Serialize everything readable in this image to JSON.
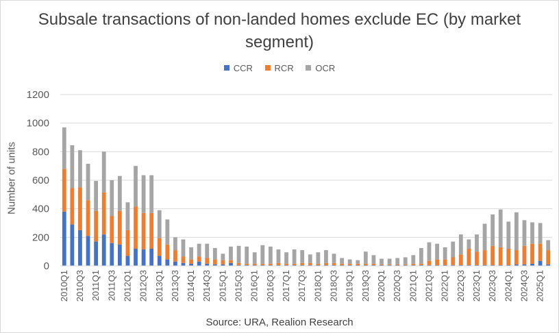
{
  "chart_data": {
    "type": "bar",
    "stacked": true,
    "title": "Subsale transactions of non-landed homes exclude EC (by market segment)",
    "ylabel": "Number of units",
    "source": "Source: URA, Realion Research",
    "ylim": [
      0,
      1200
    ],
    "yticks": [
      "0",
      "200",
      "400",
      "600",
      "800",
      "1000",
      "1200"
    ],
    "legend_position": "top",
    "grid": "horizontal",
    "categories": [
      "2010Q1",
      "2010Q2",
      "2010Q3",
      "2010Q4",
      "2011Q1",
      "2011Q2",
      "2011Q3",
      "2011Q4",
      "2012Q1",
      "2012Q2",
      "2012Q3",
      "2012Q4",
      "2013Q1",
      "2013Q2",
      "2013Q3",
      "2013Q4",
      "2014Q1",
      "2014Q2",
      "2014Q3",
      "2014Q4",
      "2015Q1",
      "2015Q2",
      "2015Q3",
      "2015Q4",
      "2016Q1",
      "2016Q2",
      "2016Q3",
      "2016Q4",
      "2017Q1",
      "2017Q2",
      "2017Q3",
      "2017Q4",
      "2018Q1",
      "2018Q2",
      "2018Q3",
      "2018Q4",
      "2019Q1",
      "2019Q2",
      "2019Q3",
      "2019Q4",
      "2020Q1",
      "2020Q2",
      "2020Q3",
      "2020Q4",
      "2021Q1",
      "2021Q2",
      "2021Q3",
      "2021Q4",
      "2022Q1",
      "2022Q2",
      "2022Q3",
      "2022Q4",
      "2023Q1",
      "2023Q2",
      "2023Q3",
      "2023Q4",
      "2024Q1",
      "2024Q2",
      "2024Q3",
      "2024Q4",
      "2025Q1",
      "2025Q2"
    ],
    "series": [
      {
        "name": "CCR",
        "color": "#4472c4",
        "values": [
          380,
          290,
          250,
          210,
          170,
          220,
          160,
          150,
          70,
          120,
          115,
          120,
          70,
          45,
          30,
          20,
          15,
          30,
          15,
          10,
          10,
          20,
          5,
          5,
          5,
          5,
          5,
          5,
          5,
          5,
          5,
          5,
          5,
          5,
          5,
          5,
          5,
          5,
          5,
          5,
          5,
          5,
          5,
          5,
          5,
          5,
          5,
          5,
          5,
          5,
          5,
          5,
          5,
          5,
          5,
          5,
          5,
          10,
          10,
          15,
          35,
          10
        ]
      },
      {
        "name": "RCR",
        "color": "#ed7d31",
        "values": [
          300,
          255,
          300,
          250,
          215,
          295,
          190,
          235,
          180,
          295,
          255,
          250,
          125,
          105,
          80,
          45,
          30,
          35,
          40,
          35,
          30,
          20,
          15,
          10,
          10,
          10,
          10,
          15,
          10,
          10,
          15,
          15,
          10,
          15,
          15,
          10,
          10,
          10,
          10,
          10,
          5,
          5,
          5,
          5,
          10,
          10,
          30,
          40,
          40,
          55,
          75,
          115,
          95,
          105,
          135,
          125,
          115,
          100,
          130,
          140,
          120,
          100
        ]
      },
      {
        "name": "OCR",
        "color": "#a5a5a5",
        "values": [
          290,
          300,
          260,
          255,
          210,
          285,
          250,
          245,
          195,
          285,
          265,
          265,
          195,
          175,
          90,
          120,
          85,
          90,
          100,
          80,
          45,
          95,
          120,
          120,
          80,
          130,
          120,
          95,
          80,
          100,
          90,
          60,
          80,
          90,
          65,
          40,
          30,
          25,
          85,
          60,
          40,
          40,
          45,
          50,
          60,
          110,
          130,
          110,
          85,
          110,
          140,
          65,
          120,
          185,
          220,
          265,
          190,
          265,
          180,
          150,
          145,
          70
        ]
      }
    ]
  }
}
